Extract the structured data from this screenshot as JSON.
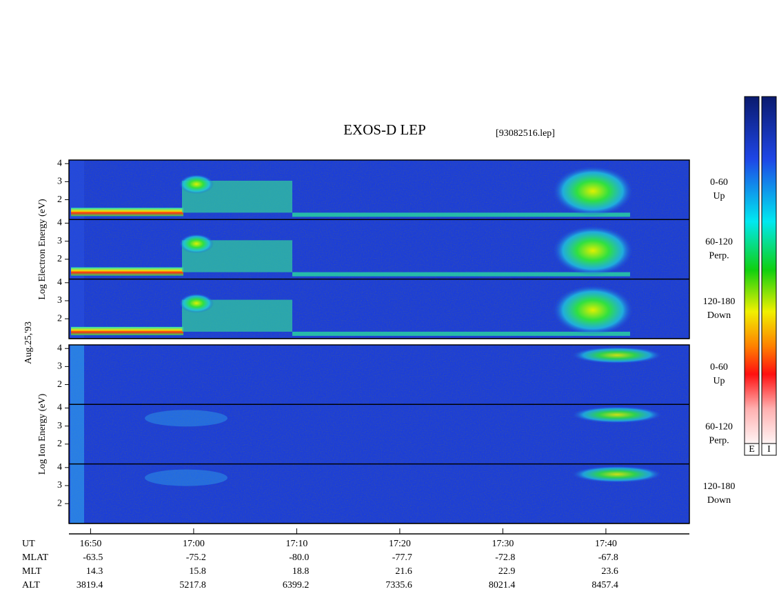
{
  "chart_data": {
    "type": "spectrogram",
    "title": "EXOS-D LEP",
    "file": "[93082516.lep]",
    "date": "Aug.25,'93",
    "groups": [
      {
        "ylabel": "Log  Electron  Energy (eV)",
        "panels": [
          {
            "lines": [
              "0-60",
              "Up"
            ]
          },
          {
            "lines": [
              "60-120",
              "Perp."
            ]
          },
          {
            "lines": [
              "120-180",
              "Down"
            ]
          }
        ]
      },
      {
        "ylabel": "Log  Ion  Energy (eV)",
        "panels": [
          {
            "lines": [
              "0-60",
              "Up"
            ]
          },
          {
            "lines": [
              "60-120",
              "Perp."
            ]
          },
          {
            "lines": [
              "120-180",
              "Down"
            ]
          }
        ]
      }
    ],
    "ylim": [
      0.9,
      4.2
    ],
    "yticks": [
      2,
      3,
      4
    ],
    "xlim": [
      1007.9,
      1068.1
    ],
    "xticks": [
      {
        "value": 1010,
        "label": "16:50"
      },
      {
        "value": 1020,
        "label": "17:00"
      },
      {
        "value": 1030,
        "label": "17:10"
      },
      {
        "value": 1040,
        "label": "17:20"
      },
      {
        "value": 1050,
        "label": "17:30"
      },
      {
        "value": 1060,
        "label": "17:40"
      }
    ],
    "colorbar_labels": [
      "E",
      "I"
    ],
    "ephemeris": {
      "labels": [
        "UT",
        "MLAT",
        "MLT",
        "ALT"
      ],
      "rows": [
        [
          "-63.5",
          "-75.2",
          "-80.0",
          "-77.7",
          "-72.8",
          "-67.8"
        ],
        [
          "14.3",
          "15.8",
          "18.8",
          "21.6",
          "22.9",
          "23.6"
        ],
        [
          "3819.4",
          "5217.8",
          "6399.2",
          "7335.6",
          "8021.4",
          "8457.4"
        ]
      ]
    }
  }
}
